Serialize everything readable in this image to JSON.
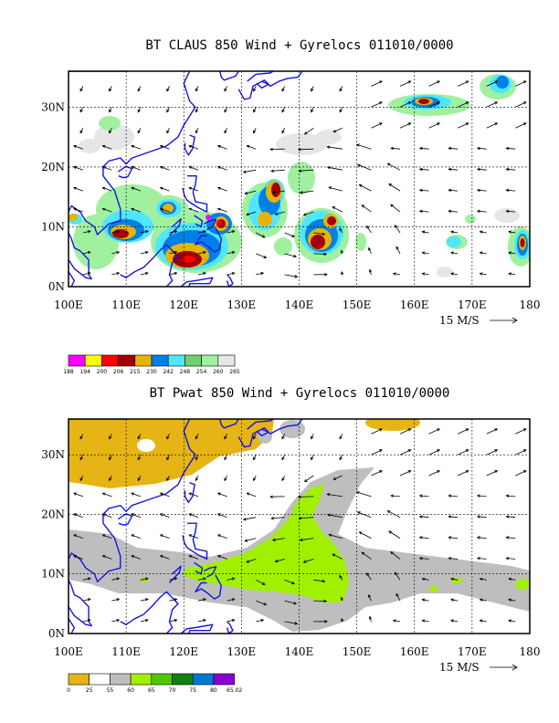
{
  "colors": {
    "coast": "#1414e6",
    "claus_scale": [
      "#ff00ff",
      "#ffff00",
      "#ff0000",
      "#a00000",
      "#e6b400",
      "#0080e6",
      "#50e6ff",
      "#6ed06e",
      "#a0f0a0",
      "#e6e6e6"
    ],
    "pwat_scale": [
      "#e6b414",
      "#ffffff",
      "#bebebe",
      "#a0f000",
      "#50c800",
      "#108010",
      "#0078d2",
      "#8c00d2"
    ]
  },
  "panel1": {
    "title": "BT CLAUS 850 Wind + Gyrelocs 011010/0000",
    "units_label": "15 M/S",
    "colorbar_labels": [
      "188",
      "194",
      "200",
      "206",
      "215",
      "230",
      "242",
      "248",
      "254",
      "260",
      "265"
    ]
  },
  "panel2": {
    "title": "BT Pwat 850 Wind + Gyrelocs 011010/0000",
    "units_label": "15 M/S",
    "colorbar_labels": [
      "0",
      "25",
      "55",
      "60",
      "65",
      "70",
      "75",
      "80",
      "65.02"
    ]
  },
  "axes": {
    "x_ticks": [
      "100E",
      "110E",
      "120E",
      "130E",
      "140E",
      "150E",
      "160E",
      "170E",
      "180"
    ],
    "y_ticks": [
      "0N",
      "10N",
      "20N",
      "30N"
    ]
  }
}
